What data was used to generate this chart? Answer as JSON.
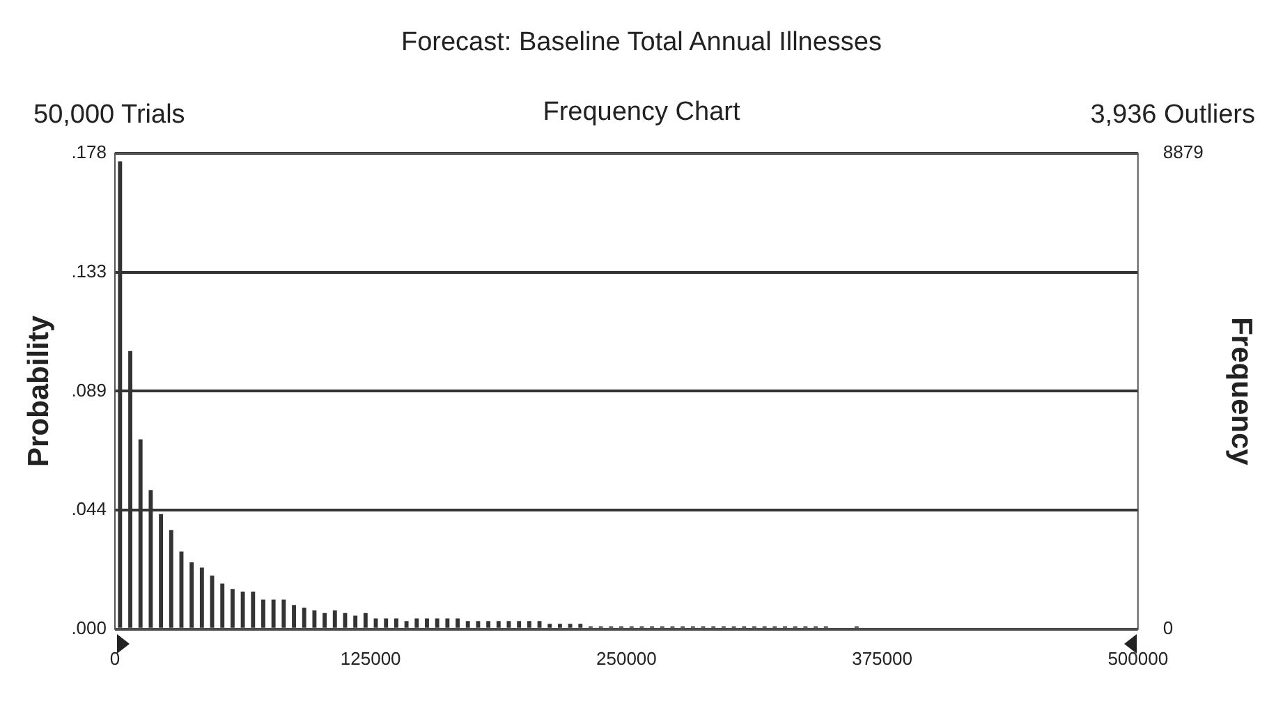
{
  "chart_data": {
    "type": "histogram",
    "title": "Forecast: Baseline Total Annual Illnesses",
    "subtitle": "Frequency Chart",
    "annotations": [
      "50,000 Trials",
      "3,936 Outliers"
    ],
    "ylabel": "Probability",
    "y2label": "Frequency",
    "bins": [
      0,
      5000,
      10000,
      15000,
      20000,
      25000,
      30000,
      35000,
      40000,
      45000,
      50000,
      55000,
      60000,
      65000,
      70000,
      75000,
      80000,
      85000,
      90000,
      95000,
      100000,
      105000,
      110000,
      115000,
      120000,
      125000,
      130000,
      135000,
      140000,
      145000,
      150000,
      155000,
      160000,
      165000,
      170000,
      175000,
      180000,
      185000,
      190000,
      195000,
      200000,
      205000,
      210000,
      215000,
      220000,
      225000,
      230000,
      235000,
      240000,
      245000,
      250000,
      255000,
      260000,
      265000,
      270000,
      275000,
      280000,
      285000,
      290000,
      295000,
      300000,
      305000,
      310000,
      315000,
      320000,
      325000,
      330000,
      335000,
      340000,
      345000,
      350000,
      355000,
      360000,
      365000,
      370000,
      375000,
      380000,
      385000,
      390000,
      395000,
      400000,
      405000,
      410000,
      415000,
      420000,
      425000,
      430000,
      435000,
      440000,
      445000,
      450000,
      455000,
      460000,
      465000,
      470000,
      475000,
      480000,
      485000,
      490000,
      495000,
      500000
    ],
    "values": [
      0.175,
      0.104,
      0.071,
      0.052,
      0.043,
      0.037,
      0.029,
      0.025,
      0.023,
      0.02,
      0.017,
      0.015,
      0.014,
      0.014,
      0.011,
      0.011,
      0.011,
      0.009,
      0.008,
      0.007,
      0.006,
      0.007,
      0.006,
      0.005,
      0.006,
      0.004,
      0.004,
      0.004,
      0.003,
      0.004,
      0.004,
      0.004,
      0.004,
      0.004,
      0.003,
      0.003,
      0.003,
      0.003,
      0.003,
      0.003,
      0.003,
      0.003,
      0.002,
      0.002,
      0.002,
      0.002,
      0.001,
      0.001,
      0.001,
      0.001,
      0.001,
      0.001,
      0.001,
      0.001,
      0.001,
      0.001,
      0.001,
      0.001,
      0.001,
      0.001,
      0.001,
      0.001,
      0.001,
      0.001,
      0.001,
      0.001,
      0.001,
      0.001,
      0.001,
      0.001,
      0,
      0,
      0.001,
      0,
      0,
      0,
      0,
      0,
      0,
      0,
      0,
      0,
      0,
      0,
      0,
      0,
      0,
      0,
      0,
      0,
      0,
      0,
      0,
      0,
      0,
      0,
      0,
      0,
      0,
      0
    ],
    "color": "#333333",
    "xlim": [
      0,
      500000
    ],
    "xticks": [
      0,
      125000,
      250000,
      375000,
      500000
    ],
    "ylim": [
      0,
      0.178
    ],
    "yticks": [
      {
        "value": 0,
        "label": ".000"
      },
      {
        "value": 0.0445,
        "label": ".044"
      },
      {
        "value": 0.089,
        "label": ".089"
      },
      {
        "value": 0.1335,
        "label": ".133"
      },
      {
        "value": 0.178,
        "label": ".178"
      }
    ],
    "y2lim": [
      0,
      8879
    ],
    "y2ticks": [
      0,
      8879
    ],
    "grid": "y",
    "legend": false
  }
}
